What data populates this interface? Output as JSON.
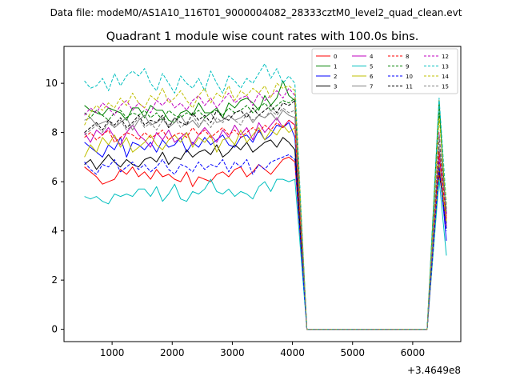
{
  "chart_data": {
    "type": "line",
    "suptitle": "Data file: modeM0/AS1A10_116T01_9000004082_28333cztM0_level2_quad_clean.evt",
    "title": "Quadrant 1 module wise count rates with 100.0s bins.",
    "xlabel": "",
    "ylabel": "",
    "x_offset_text": "+3.4649e8",
    "xlim": [
      200,
      6800
    ],
    "ylim": [
      -0.5,
      11.5
    ],
    "x_ticks": [
      1000,
      2000,
      3000,
      4000,
      5000,
      6000
    ],
    "y_ticks": [
      0,
      2,
      4,
      6,
      8,
      10
    ],
    "legend_position": "top-right",
    "legend_columns": 4,
    "x": [
      540,
      640,
      740,
      840,
      940,
      1040,
      1140,
      1240,
      1340,
      1440,
      1540,
      1640,
      1740,
      1840,
      1940,
      2040,
      2140,
      2240,
      2340,
      2440,
      2540,
      2640,
      2740,
      2840,
      2940,
      3040,
      3140,
      3240,
      3340,
      3440,
      3540,
      3640,
      3740,
      3840,
      3940,
      4040,
      4240,
      4340,
      6240,
      6440,
      6560
    ],
    "series": [
      {
        "name": "0",
        "color": "#ff0000",
        "dash": false,
        "values": [
          6.6,
          6.4,
          6.2,
          5.9,
          6.0,
          6.1,
          6.5,
          6.3,
          6.6,
          6.2,
          6.4,
          6.1,
          6.5,
          6.2,
          6.3,
          6.1,
          6.0,
          6.4,
          5.8,
          6.2,
          6.1,
          6.0,
          6.3,
          6.4,
          6.2,
          6.5,
          6.6,
          6.2,
          6.4,
          6.7,
          6.5,
          6.3,
          6.6,
          6.9,
          7.0,
          6.8,
          0.0,
          0.0,
          0.0,
          6.3,
          4.6
        ]
      },
      {
        "name": "1",
        "color": "#008000",
        "dash": false,
        "values": [
          9.1,
          8.9,
          8.8,
          8.7,
          9.0,
          8.9,
          8.8,
          8.5,
          9.0,
          9.0,
          8.6,
          9.1,
          8.9,
          8.9,
          8.5,
          8.4,
          8.8,
          8.9,
          8.7,
          9.2,
          8.8,
          8.8,
          9.0,
          8.6,
          9.2,
          9.0,
          9.3,
          9.4,
          9.2,
          8.9,
          9.5,
          9.1,
          9.4,
          10.1,
          9.5,
          9.3,
          0.0,
          0.0,
          0.0,
          9.3,
          4.3
        ]
      },
      {
        "name": "2",
        "color": "#0000ff",
        "dash": false,
        "values": [
          7.6,
          7.4,
          7.2,
          7.0,
          7.5,
          7.3,
          7.8,
          7.0,
          7.6,
          7.5,
          7.3,
          7.6,
          7.2,
          7.7,
          7.4,
          7.5,
          7.8,
          7.2,
          7.6,
          7.4,
          7.8,
          7.5,
          7.7,
          7.9,
          7.5,
          7.4,
          7.8,
          7.9,
          7.6,
          8.1,
          7.7,
          7.9,
          8.3,
          8.2,
          8.4,
          7.8,
          0.0,
          0.0,
          0.0,
          6.8,
          3.6
        ]
      },
      {
        "name": "3",
        "color": "#000000",
        "dash": false,
        "values": [
          6.7,
          6.9,
          6.5,
          6.8,
          7.1,
          6.8,
          6.6,
          6.9,
          6.7,
          6.6,
          6.9,
          7.0,
          6.8,
          7.2,
          6.7,
          7.0,
          6.9,
          7.3,
          7.0,
          7.2,
          7.3,
          7.1,
          7.5,
          7.0,
          7.2,
          7.5,
          7.3,
          7.6,
          7.2,
          7.4,
          7.6,
          7.7,
          7.4,
          7.8,
          7.6,
          7.3,
          0.0,
          0.0,
          0.0,
          6.5,
          4.1
        ]
      },
      {
        "name": "4",
        "color": "#bf00bf",
        "dash": false,
        "values": [
          8.0,
          7.6,
          8.1,
          7.9,
          8.2,
          7.8,
          7.5,
          8.0,
          8.3,
          7.9,
          7.7,
          7.4,
          8.0,
          7.7,
          8.1,
          7.6,
          7.8,
          8.0,
          7.5,
          7.9,
          8.2,
          7.9,
          7.6,
          8.1,
          7.8,
          8.3,
          7.9,
          8.2,
          7.7,
          8.4,
          8.0,
          8.3,
          8.6,
          8.2,
          8.5,
          8.3,
          0.0,
          0.0,
          0.0,
          7.1,
          4.2
        ]
      },
      {
        "name": "5",
        "color": "#00bfbf",
        "dash": false,
        "values": [
          5.4,
          5.3,
          5.4,
          5.2,
          5.1,
          5.5,
          5.4,
          5.5,
          5.4,
          5.7,
          5.7,
          5.4,
          5.8,
          5.2,
          5.5,
          5.9,
          5.3,
          5.2,
          5.6,
          5.5,
          5.7,
          6.1,
          5.6,
          5.5,
          5.7,
          5.4,
          5.6,
          5.5,
          5.3,
          5.8,
          6.0,
          5.6,
          6.1,
          6.1,
          6.0,
          6.1,
          0.0,
          0.0,
          0.0,
          6.1,
          3.0
        ]
      },
      {
        "name": "6",
        "color": "#bfbf00",
        "dash": false,
        "values": [
          7.0,
          7.5,
          7.2,
          7.8,
          7.5,
          7.9,
          7.4,
          7.8,
          7.2,
          7.4,
          7.6,
          7.9,
          7.5,
          7.3,
          7.7,
          7.9,
          7.6,
          8.0,
          7.4,
          7.8,
          7.6,
          7.9,
          7.2,
          7.7,
          7.8,
          7.5,
          8.1,
          7.6,
          7.9,
          8.2,
          7.7,
          8.1,
          7.9,
          8.3,
          8.0,
          8.2,
          0.0,
          0.0,
          0.0,
          6.7,
          4.4
        ]
      },
      {
        "name": "7",
        "color": "#808080",
        "dash": false,
        "values": [
          8.5,
          8.6,
          8.3,
          8.4,
          8.5,
          8.2,
          8.4,
          8.6,
          8.1,
          8.5,
          8.7,
          8.3,
          8.4,
          8.6,
          8.2,
          8.4,
          8.7,
          8.3,
          8.5,
          8.2,
          8.6,
          8.8,
          8.4,
          8.5,
          8.7,
          8.5,
          8.6,
          8.8,
          8.4,
          8.7,
          8.6,
          8.8,
          8.5,
          8.9,
          8.7,
          8.6,
          0.0,
          0.0,
          0.0,
          7.4,
          4.8
        ]
      },
      {
        "name": "8",
        "color": "#ff0000",
        "dash": true,
        "values": [
          7.8,
          8.0,
          7.7,
          7.9,
          8.1,
          7.6,
          7.8,
          8.0,
          7.9,
          7.7,
          8.0,
          7.8,
          7.9,
          8.1,
          7.7,
          7.9,
          8.0,
          7.8,
          8.2,
          7.9,
          8.1,
          7.8,
          8.0,
          8.2,
          7.9,
          8.1,
          7.8,
          8.0,
          8.2,
          8.0,
          8.3,
          8.1,
          8.4,
          8.2,
          8.5,
          8.3,
          0.0,
          0.0,
          0.0,
          7.2,
          4.5
        ]
      },
      {
        "name": "9",
        "color": "#008000",
        "dash": true,
        "values": [
          8.8,
          8.6,
          8.9,
          8.7,
          8.5,
          8.8,
          8.9,
          8.6,
          8.8,
          8.7,
          8.9,
          8.6,
          8.8,
          8.5,
          8.9,
          8.7,
          8.6,
          8.8,
          8.7,
          8.9,
          8.6,
          8.8,
          8.9,
          8.7,
          9.0,
          8.8,
          8.9,
          9.1,
          8.8,
          9.0,
          9.2,
          8.9,
          9.1,
          9.3,
          9.2,
          9.4,
          0.0,
          0.0,
          0.0,
          8.8,
          4.9
        ]
      },
      {
        "name": "10",
        "color": "#0000ff",
        "dash": true,
        "values": [
          6.8,
          6.5,
          6.3,
          6.7,
          6.6,
          6.9,
          6.4,
          6.6,
          6.8,
          6.5,
          6.7,
          6.4,
          6.6,
          6.9,
          6.5,
          6.3,
          6.7,
          6.6,
          6.4,
          6.8,
          6.5,
          6.7,
          6.6,
          6.9,
          6.4,
          6.8,
          6.6,
          6.9,
          6.3,
          6.7,
          6.5,
          6.8,
          6.9,
          7.0,
          7.1,
          6.9,
          0.0,
          0.0,
          0.0,
          6.6,
          4.0
        ]
      },
      {
        "name": "11",
        "color": "#000000",
        "dash": true,
        "values": [
          8.0,
          8.2,
          8.4,
          8.1,
          8.5,
          8.3,
          8.6,
          8.2,
          8.4,
          8.7,
          8.3,
          8.5,
          8.4,
          8.7,
          8.2,
          8.6,
          8.4,
          8.3,
          8.8,
          8.5,
          8.7,
          8.4,
          8.9,
          8.6,
          8.5,
          8.8,
          8.9,
          8.6,
          9.0,
          8.7,
          8.9,
          9.1,
          8.8,
          9.2,
          9.1,
          9.3,
          0.0,
          0.0,
          0.0,
          7.8,
          4.7
        ]
      },
      {
        "name": "12",
        "color": "#bf00bf",
        "dash": true,
        "values": [
          8.7,
          9.0,
          8.8,
          9.2,
          9.0,
          8.7,
          9.1,
          9.3,
          8.9,
          9.2,
          9.0,
          8.8,
          9.3,
          9.1,
          9.4,
          9.0,
          9.2,
          8.9,
          9.3,
          9.5,
          9.1,
          9.4,
          9.0,
          9.3,
          9.6,
          9.2,
          9.4,
          9.5,
          9.1,
          9.6,
          9.3,
          9.5,
          9.7,
          9.4,
          9.8,
          9.5,
          0.0,
          0.0,
          0.0,
          8.0,
          4.6
        ]
      },
      {
        "name": "13",
        "color": "#00bfbf",
        "dash": true,
        "values": [
          10.1,
          9.8,
          9.9,
          10.2,
          9.7,
          10.4,
          9.9,
          10.3,
          10.5,
          10.3,
          10.6,
          10.0,
          9.7,
          10.4,
          10.0,
          9.6,
          10.3,
          10.0,
          9.8,
          10.2,
          9.7,
          10.5,
          10.0,
          9.6,
          10.3,
          10.1,
          9.8,
          10.2,
          10.0,
          10.4,
          10.8,
          10.2,
          10.6,
          10.0,
          10.3,
          10.0,
          0.0,
          0.0,
          0.0,
          9.4,
          5.1
        ]
      },
      {
        "name": "14",
        "color": "#bfbf00",
        "dash": true,
        "values": [
          8.3,
          8.8,
          9.1,
          8.9,
          9.2,
          9.0,
          9.4,
          9.1,
          9.6,
          9.2,
          9.0,
          9.5,
          9.3,
          9.8,
          9.2,
          9.4,
          9.7,
          9.3,
          9.0,
          9.5,
          9.8,
          9.2,
          9.6,
          9.4,
          9.9,
          9.3,
          9.7,
          9.5,
          9.8,
          9.6,
          9.9,
          9.4,
          10.0,
          9.8,
          9.9,
          9.7,
          0.0,
          0.0,
          0.0,
          8.6,
          5.0
        ]
      },
      {
        "name": "15",
        "color": "#808080",
        "dash": true,
        "values": [
          7.9,
          8.1,
          8.3,
          8.0,
          8.4,
          8.2,
          8.5,
          8.1,
          8.3,
          8.6,
          8.2,
          8.4,
          8.1,
          8.5,
          8.3,
          8.6,
          8.2,
          8.4,
          8.7,
          8.3,
          8.5,
          8.2,
          8.6,
          8.4,
          8.7,
          8.5,
          8.3,
          8.8,
          8.5,
          8.7,
          8.6,
          8.9,
          8.7,
          9.0,
          8.8,
          8.9,
          0.0,
          0.0,
          0.0,
          7.9,
          4.8
        ]
      }
    ]
  }
}
